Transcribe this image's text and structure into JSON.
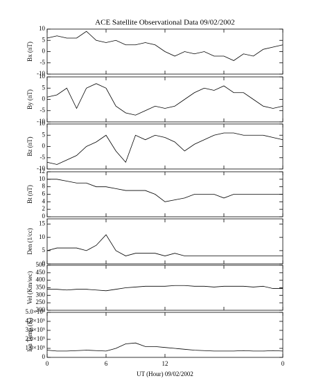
{
  "chart_data": [
    {
      "type": "line",
      "title": "ACE Satellite Observational Data   09/02/2002",
      "y_label": "Bx (nT)",
      "x": [
        0,
        1,
        2,
        3,
        4,
        5,
        6,
        7,
        8,
        9,
        10,
        11,
        12,
        13,
        14,
        15,
        16,
        17,
        18,
        19,
        20,
        21,
        22,
        23,
        24
      ],
      "series": [
        {
          "color": "#000000",
          "values": [
            6,
            7,
            6,
            6,
            9,
            5,
            4,
            5,
            3,
            3,
            4,
            3,
            0,
            -2,
            0,
            -1,
            0,
            -2,
            -2,
            -4,
            -1,
            -2,
            1,
            2,
            3
          ]
        }
      ],
      "xlim": [
        0,
        24
      ],
      "xticks": [
        0,
        6,
        12,
        18,
        24
      ],
      "ylim": [
        -10,
        10
      ],
      "yticks": [
        -10,
        -5,
        0,
        5,
        10
      ]
    },
    {
      "type": "line",
      "y_label": "By (nT)",
      "x": [
        0,
        1,
        2,
        3,
        4,
        5,
        6,
        7,
        8,
        9,
        10,
        11,
        12,
        13,
        14,
        15,
        16,
        17,
        18,
        19,
        20,
        21,
        22,
        23,
        24
      ],
      "series": [
        {
          "color": "#000000",
          "values": [
            1,
            2,
            5,
            -4,
            5,
            7,
            5,
            -3,
            -6,
            -7,
            -5,
            -3,
            -4,
            -3,
            0,
            3,
            5,
            4,
            6,
            3,
            3,
            0,
            -3,
            -4,
            -3
          ]
        }
      ],
      "xlim": [
        0,
        24
      ],
      "xticks": [
        0,
        6,
        12,
        18,
        24
      ],
      "ylim": [
        -10,
        10
      ],
      "yticks": [
        -10,
        -5,
        0,
        5,
        10
      ]
    },
    {
      "type": "line",
      "y_label": "Bz (nT)",
      "x": [
        0,
        1,
        2,
        3,
        4,
        5,
        6,
        7,
        8,
        9,
        10,
        11,
        12,
        13,
        14,
        15,
        16,
        17,
        18,
        19,
        20,
        21,
        22,
        23,
        24
      ],
      "series": [
        {
          "color": "#000000",
          "values": [
            -7,
            -8,
            -6,
            -4,
            0,
            2,
            5,
            -2,
            -7,
            5,
            3,
            5,
            4,
            2,
            -2,
            1,
            3,
            5,
            6,
            6,
            5,
            5,
            5,
            4,
            3
          ]
        }
      ],
      "xlim": [
        0,
        24
      ],
      "xticks": [
        0,
        6,
        12,
        18,
        24
      ],
      "ylim": [
        -10,
        10
      ],
      "yticks": [
        -10,
        -5,
        0,
        5,
        10
      ]
    },
    {
      "type": "line",
      "y_label": "Bt (nT)",
      "x": [
        0,
        1,
        2,
        3,
        4,
        5,
        6,
        7,
        8,
        9,
        10,
        11,
        12,
        13,
        14,
        15,
        16,
        17,
        18,
        19,
        20,
        21,
        22,
        23,
        24
      ],
      "series": [
        {
          "color": "#000000",
          "values": [
            10,
            10,
            9.5,
            9,
            9,
            8,
            8,
            7.5,
            7,
            7,
            7,
            6,
            4,
            4.5,
            5,
            6,
            6,
            6,
            5,
            6,
            6,
            6,
            6,
            6,
            6
          ]
        }
      ],
      "xlim": [
        0,
        24
      ],
      "xticks": [
        0,
        6,
        12,
        18,
        24
      ],
      "ylim": [
        0,
        12
      ],
      "yticks": [
        0,
        2,
        4,
        6,
        8,
        10,
        12
      ]
    },
    {
      "type": "line",
      "y_label": "Den (1/cc)",
      "x": [
        0,
        1,
        2,
        3,
        4,
        5,
        6,
        7,
        8,
        9,
        10,
        11,
        12,
        13,
        14,
        15,
        16,
        17,
        18,
        19,
        20,
        21,
        22,
        23,
        24
      ],
      "series": [
        {
          "color": "#000000",
          "values": [
            5,
            6,
            6,
            6,
            5,
            7,
            11,
            5,
            3,
            4,
            4,
            4,
            3,
            4,
            3,
            3,
            3,
            3,
            3,
            3,
            3,
            3,
            3,
            3,
            3
          ]
        }
      ],
      "xlim": [
        0,
        24
      ],
      "xticks": [
        0,
        6,
        12,
        18,
        24
      ],
      "ylim": [
        0,
        17
      ],
      "yticks": [
        0,
        5,
        10,
        15
      ]
    },
    {
      "type": "line",
      "y_label": "Vel (Km/sec)",
      "x": [
        0,
        1,
        2,
        3,
        4,
        5,
        6,
        7,
        8,
        9,
        10,
        11,
        12,
        13,
        14,
        15,
        16,
        17,
        18,
        19,
        20,
        21,
        22,
        23,
        24
      ],
      "series": [
        {
          "color": "#000000",
          "values": [
            340,
            340,
            335,
            340,
            340,
            335,
            330,
            340,
            350,
            355,
            360,
            360,
            360,
            365,
            365,
            360,
            360,
            355,
            360,
            360,
            360,
            355,
            360,
            345,
            345
          ]
        }
      ],
      "xlim": [
        0,
        24
      ],
      "xticks": [
        0,
        6,
        12,
        18,
        24
      ],
      "ylim": [
        200,
        500
      ],
      "yticks": [
        200,
        250,
        300,
        350,
        400,
        450,
        500
      ]
    },
    {
      "type": "line",
      "y_label": "Ion Temp (K)",
      "x_label": "UT (Hour)  09/02/2002",
      "x": [
        0,
        1,
        2,
        3,
        4,
        5,
        6,
        7,
        8,
        9,
        10,
        11,
        12,
        13,
        14,
        15,
        16,
        17,
        18,
        19,
        20,
        21,
        22,
        23,
        24
      ],
      "series": [
        {
          "color": "#000000",
          "values": [
            80000,
            70000,
            70000,
            75000,
            80000,
            75000,
            70000,
            100000,
            150000,
            160000,
            120000,
            120000,
            110000,
            100000,
            90000,
            80000,
            75000,
            70000,
            70000,
            70000,
            75000,
            70000,
            70000,
            75000,
            70000
          ]
        }
      ],
      "xlim": [
        0,
        24
      ],
      "xticks": [
        0,
        6,
        12,
        {
          "value": 24,
          "label": "0"
        }
      ],
      "ylim": [
        0,
        500000
      ],
      "yticks": [
        0,
        {
          "value": 100000,
          "label": "1.0×10⁵"
        },
        {
          "value": 200000,
          "label": "2.0×10⁵"
        },
        {
          "value": 300000,
          "label": "3.0×10⁵"
        },
        {
          "value": 400000,
          "label": "4.0×10⁵"
        },
        {
          "value": 500000,
          "label": "5.0×10⁵"
        }
      ]
    }
  ]
}
